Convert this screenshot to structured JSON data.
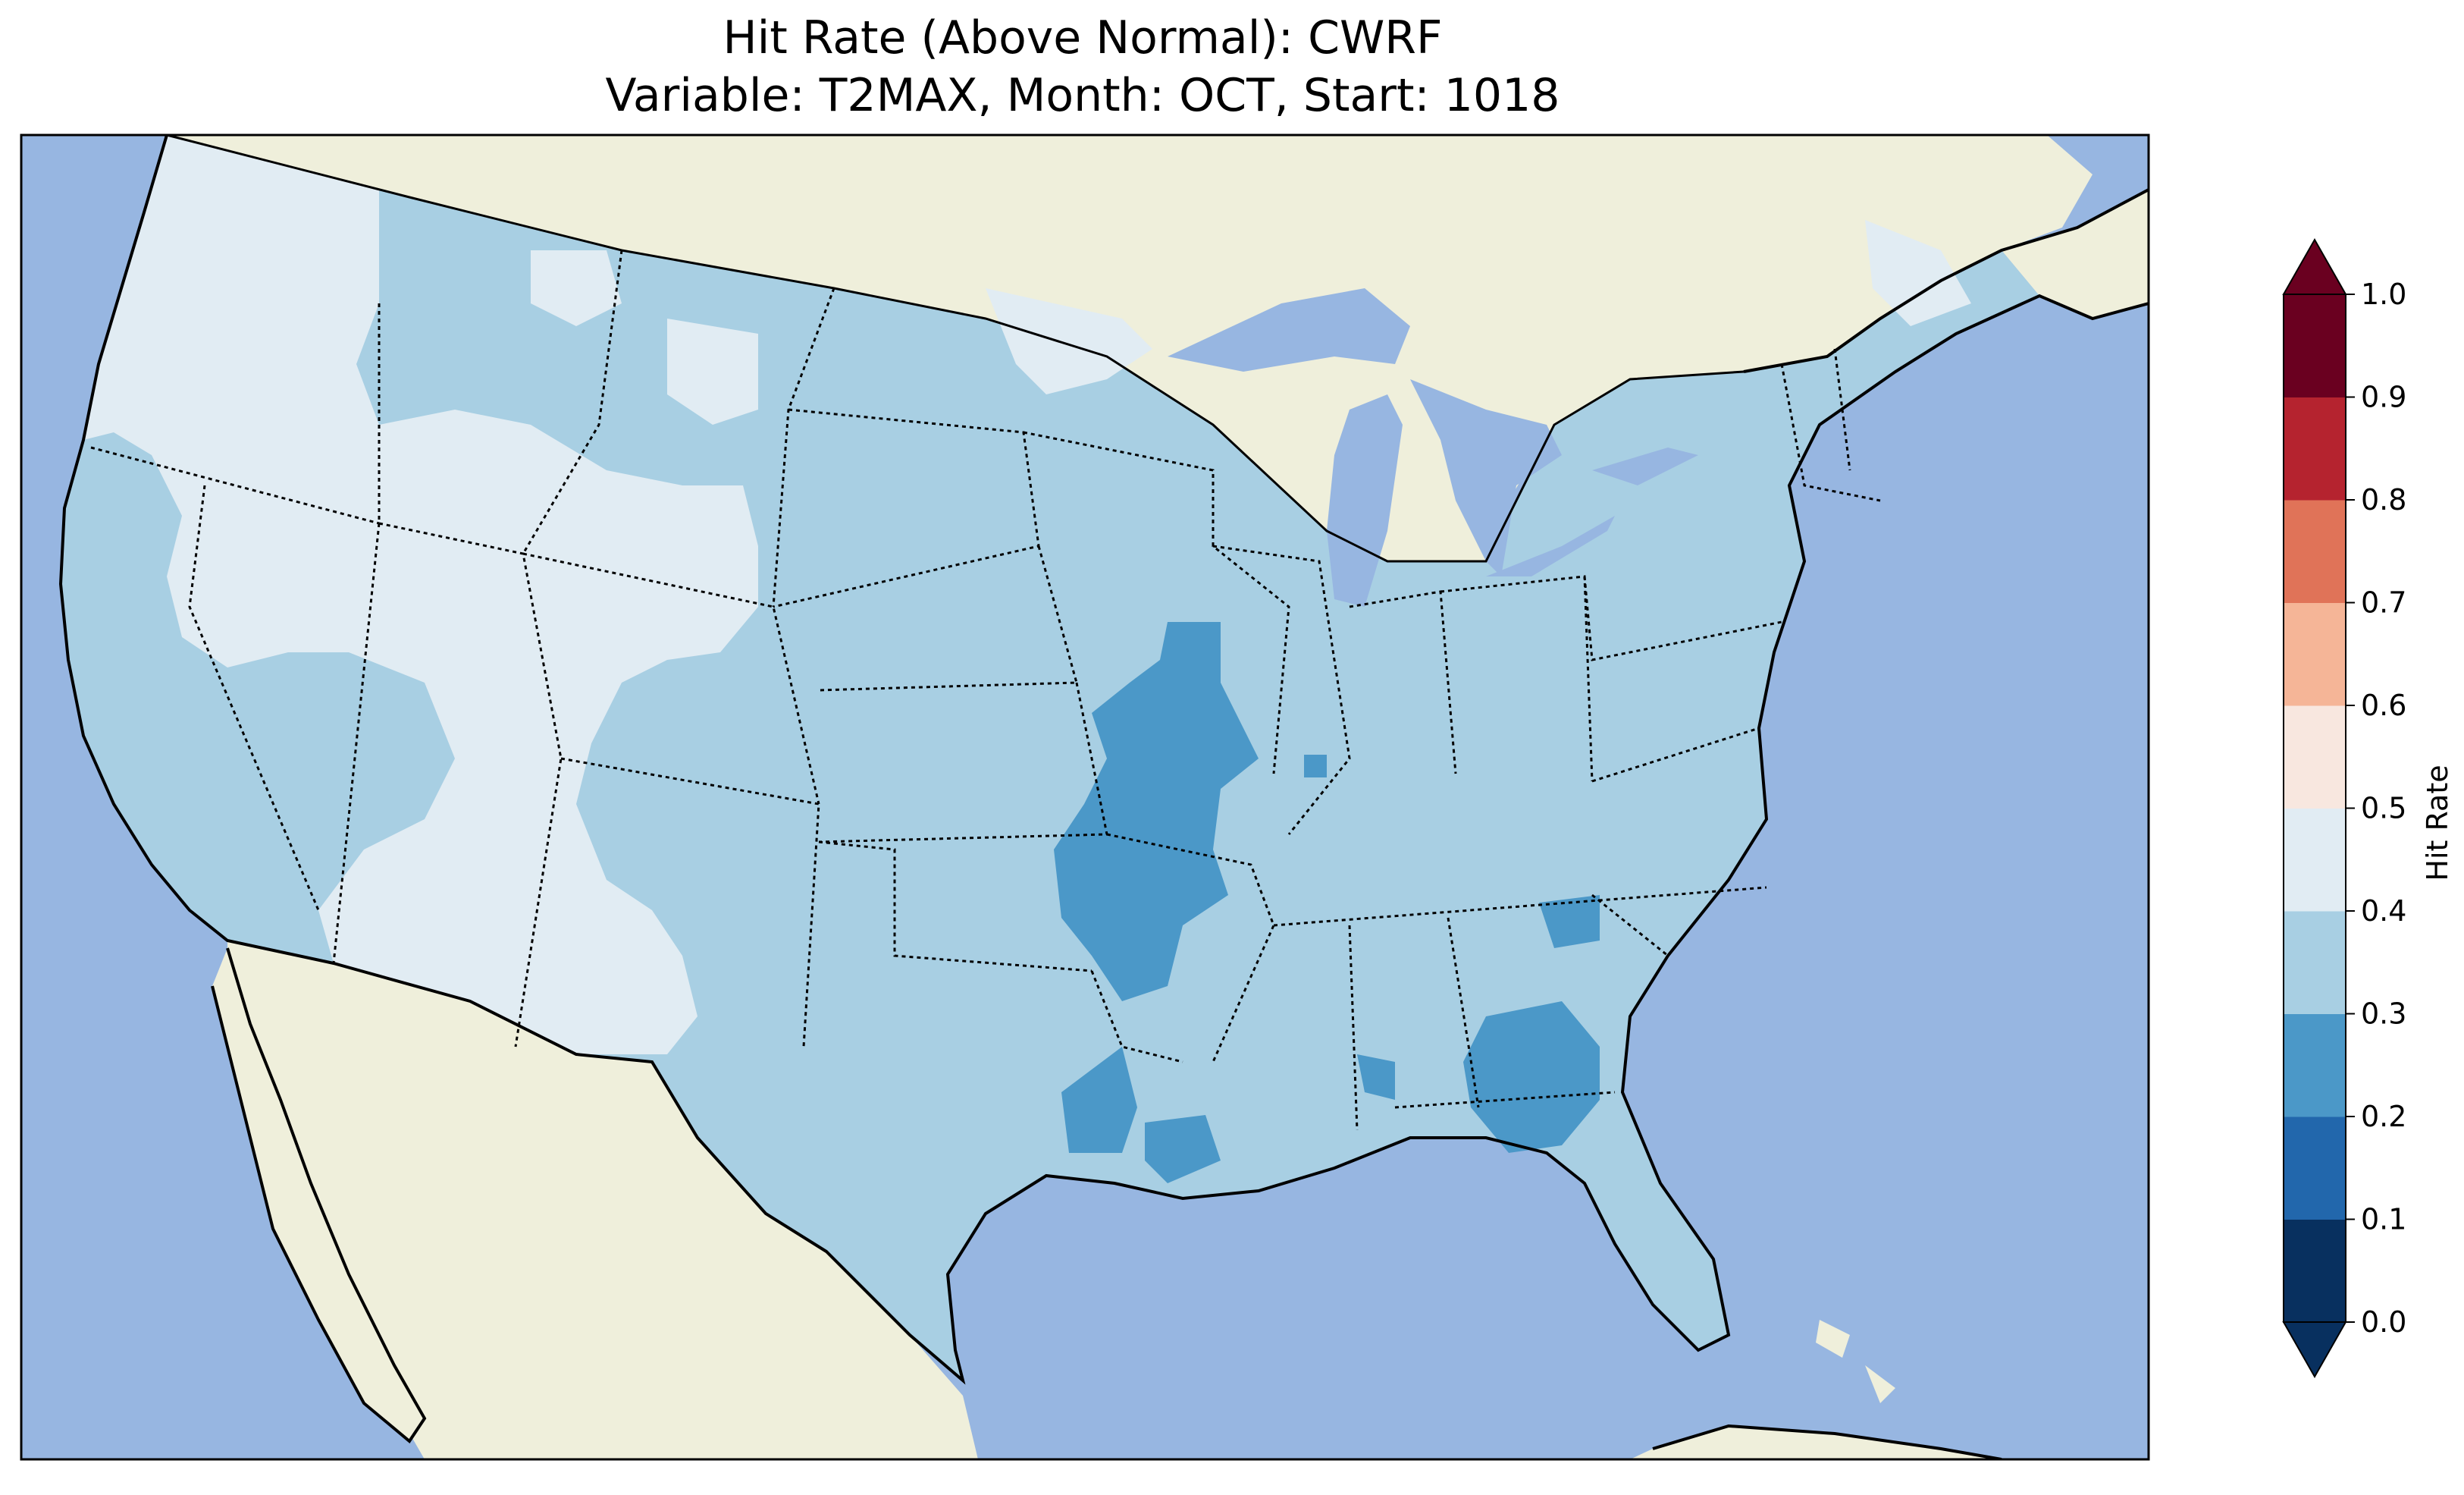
{
  "title": {
    "line1": "Hit Rate (Above Normal): CWRF",
    "line2": "Variable: T2MAX, Month: OCT, Start: 1018"
  },
  "map": {
    "region": "Contiguous United States",
    "ocean_color": "#97b6e1",
    "land_color": "#efefdb",
    "projection": "Lambert Conformal"
  },
  "colorbar": {
    "label": "Hit Rate",
    "ticks": [
      "0.0",
      "0.1",
      "0.2",
      "0.3",
      "0.4",
      "0.5",
      "0.6",
      "0.7",
      "0.8",
      "0.9",
      "1.0"
    ],
    "colors": [
      "#053061",
      "#2166ac",
      "#4393c3",
      "#92c5de",
      "#d1e5f0",
      "#f7f7f7",
      "#fddbc7",
      "#f4a582",
      "#d6604d",
      "#b2182b",
      "#67001f"
    ],
    "bins": [
      {
        "range": "0.0-0.1",
        "color": "#08305f"
      },
      {
        "range": "0.1-0.2",
        "color": "#2267ac"
      },
      {
        "range": "0.2-0.3",
        "color": "#4b98c8"
      },
      {
        "range": "0.3-0.4",
        "color": "#a8cfe3"
      },
      {
        "range": "0.4-0.5",
        "color": "#e1ecf3"
      },
      {
        "range": "0.5-0.6",
        "color": "#f8e7df"
      },
      {
        "range": "0.6-0.7",
        "color": "#f5b597"
      },
      {
        "range": "0.7-0.8",
        "color": "#e07358"
      },
      {
        "range": "0.8-0.9",
        "color": "#b5232f"
      },
      {
        "range": "0.9-1.0",
        "color": "#6a0020"
      }
    ],
    "extend": "both"
  },
  "chart_data": {
    "type": "heatmap",
    "title": "Hit Rate (Above Normal): CWRF\nVariable: T2MAX, Month: OCT, Start: 1018",
    "variable": "T2MAX",
    "month": "OCT",
    "start": "1018",
    "model": "CWRF",
    "colorbar_label": "Hit Rate",
    "vmin": 0.0,
    "vmax": 1.0,
    "levels": [
      0.0,
      0.1,
      0.2,
      0.3,
      0.4,
      0.5,
      0.6,
      0.7,
      0.8,
      0.9,
      1.0
    ],
    "regions": [
      {
        "area": "Pacific Northwest / West Coast",
        "hit_rate_range": [
          0.4,
          0.5
        ]
      },
      {
        "area": "Great Basin / Nevada-Utah",
        "hit_rate_range": [
          0.4,
          0.5
        ]
      },
      {
        "area": "Arizona / New Mexico",
        "hit_rate_range": [
          0.4,
          0.5
        ]
      },
      {
        "area": "Northern Rockies / Montana",
        "hit_rate_range": [
          0.3,
          0.4
        ]
      },
      {
        "area": "Great Plains",
        "hit_rate_range": [
          0.3,
          0.4
        ]
      },
      {
        "area": "Midwest",
        "hit_rate_range": [
          0.3,
          0.4
        ]
      },
      {
        "area": "Texas",
        "hit_rate_range": [
          0.3,
          0.4
        ]
      },
      {
        "area": "Southeast / Florida",
        "hit_rate_range": [
          0.3,
          0.4
        ]
      },
      {
        "area": "Northeast",
        "hit_rate_range": [
          0.3,
          0.4
        ]
      },
      {
        "area": "Missouri / Arkansas / eastern Oklahoma",
        "hit_rate_range": [
          0.2,
          0.3
        ]
      },
      {
        "area": "Louisiana / eastern Texas",
        "hit_rate_range": [
          0.2,
          0.3
        ]
      },
      {
        "area": "Southern Georgia / Alabama",
        "hit_rate_range": [
          0.2,
          0.3
        ]
      },
      {
        "area": "South Carolina (small area)",
        "hit_rate_range": [
          0.2,
          0.3
        ]
      }
    ]
  }
}
